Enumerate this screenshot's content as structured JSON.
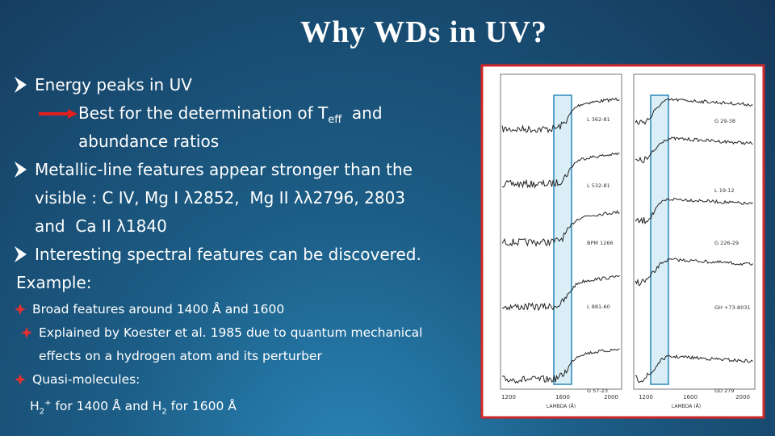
{
  "title": "Why WDs in UV?",
  "bullets": [
    {
      "text": "Energy peaks in UV",
      "detail": {
        "before": "Best for the determination of T",
        "sub": "eff",
        "after": "and",
        "line2": "abundance ratios"
      }
    },
    {
      "lines": [
        "Metallic-line features appear stronger than the",
        "visible : C IV, Mg I λ2852,  Mg II λλ2796, 2803",
        "and  Ca II λ1840"
      ]
    },
    {
      "text": "Interesting spectral features can be discovered."
    }
  ],
  "example": {
    "label": "Example:",
    "points": [
      {
        "lines": [
          "Broad features around 1400 Å and 1600"
        ]
      },
      {
        "lines": [
          "Explained by Koester et al. 1985 due to quantum mechanical",
          "effects on a hydrogen atom and its perturber"
        ]
      },
      {
        "lines": [
          "Quasi-molecules:"
        ]
      }
    ],
    "note": {
      "h1": "H",
      "sub1": "2",
      "sup1": "+",
      "mid": " for 1400 Å and H",
      "sub2": "2",
      "end": " for 1600 Å"
    }
  },
  "figure": {
    "panels": [
      {
        "labels": [
          "L 362-81",
          "L 532-81",
          "BPM 1266",
          "L 881-60",
          "G 57-23"
        ],
        "ticks": [
          "1200",
          "1600",
          "2000"
        ],
        "axis_label": "LAMBDA (Å)"
      },
      {
        "labels": [
          "G 29-38",
          "L 19-12",
          "G 226-29",
          "GH +73-8031",
          "GD 279"
        ],
        "ticks": [
          "1200",
          "1600",
          "2000"
        ],
        "axis_label": "LAMBDA (Å)"
      }
    ]
  }
}
